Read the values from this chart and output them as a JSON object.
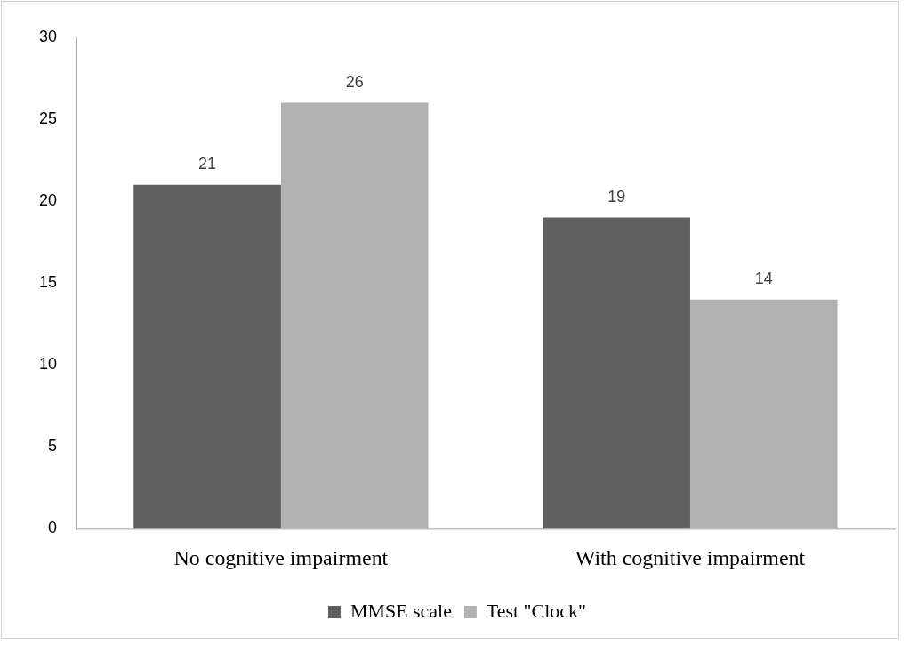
{
  "chart_data": {
    "type": "bar",
    "categories": [
      "No cognitive impairment",
      "With cognitive impairment"
    ],
    "series": [
      {
        "name": "MMSE scale",
        "color": "#606060",
        "values": [
          21,
          19
        ]
      },
      {
        "name": "Test \"Clock\"",
        "color": "#b2b2b2",
        "values": [
          26,
          14
        ]
      }
    ],
    "ylim": [
      0,
      30
    ],
    "yticks": [
      0,
      5,
      10,
      15,
      20,
      25,
      30
    ],
    "grid": false,
    "legend": "bottom",
    "data_labels": true
  }
}
